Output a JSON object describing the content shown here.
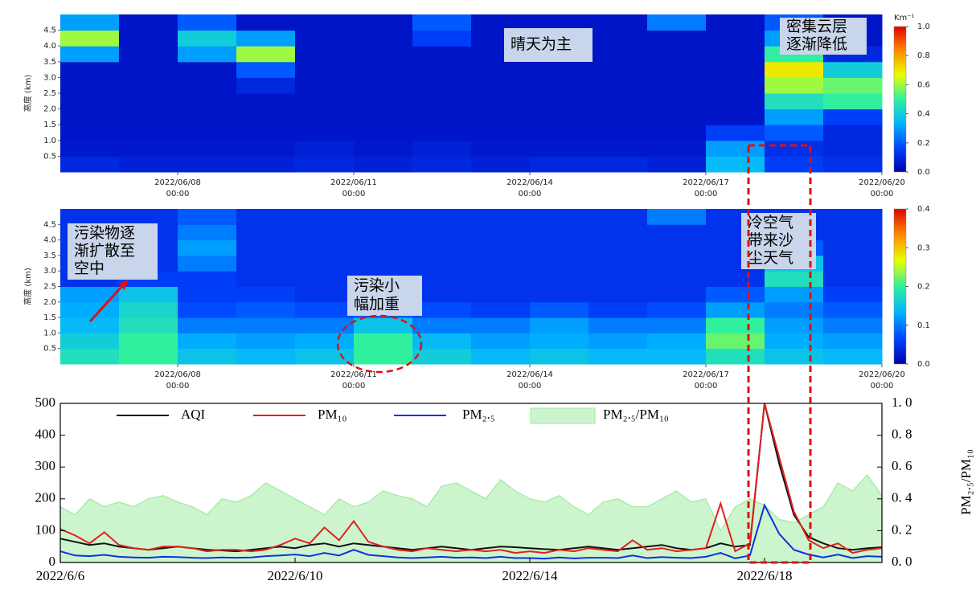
{
  "chart_data": [
    {
      "type": "heatmap",
      "ylabel": "高度 (km)",
      "colorbar_label": "Km⁻¹",
      "colormap": [
        "#0000b0",
        "#0044ff",
        "#00b4ff",
        "#30f0a0",
        "#e8ff00",
        "#ff8c00",
        "#e00000"
      ],
      "xlim": [
        0,
        14
      ],
      "ylim": [
        0,
        5
      ],
      "clim": [
        0,
        1
      ],
      "xticks": [
        {
          "value": 2,
          "label": [
            "2022/06/08",
            "00:00"
          ]
        },
        {
          "value": 5,
          "label": [
            "2022/06/11",
            "00:00"
          ]
        },
        {
          "value": 8,
          "label": [
            "2022/06/14",
            "00:00"
          ]
        },
        {
          "value": 11,
          "label": [
            "2022/06/17",
            "00:00"
          ]
        },
        {
          "value": 14,
          "label": [
            "2022/06/20",
            "00:00"
          ]
        }
      ],
      "yticks": [
        0.5,
        {
          "value": 1,
          "label": "1.0"
        },
        1.5,
        {
          "value": 2,
          "label": "2.0"
        },
        2.5,
        {
          "value": 3,
          "label": "3.0"
        },
        3.5,
        {
          "value": 4,
          "label": "4.0"
        },
        4.5
      ],
      "cticks": [
        {
          "value": 0,
          "label": "0.0"
        },
        0.2,
        0.4,
        0.6,
        0.8,
        {
          "value": 1,
          "label": "1.0"
        }
      ],
      "x": [
        0.5,
        1.5,
        2.5,
        3.5,
        4.5,
        5.5,
        6.5,
        7.5,
        8.5,
        9.5,
        10.5,
        11.5,
        12.5,
        13.5
      ],
      "y": [
        0.25,
        0.75,
        1.25,
        1.75,
        2.25,
        2.75,
        3.25,
        3.75,
        4.25,
        4.75
      ],
      "z": [
        [
          0.1,
          0.08,
          0.08,
          0.08,
          0.1,
          0.08,
          0.1,
          0.08,
          0.1,
          0.1,
          0.08,
          0.35,
          0.15,
          0.12
        ],
        [
          0.06,
          0.06,
          0.06,
          0.06,
          0.08,
          0.06,
          0.08,
          0.06,
          0.06,
          0.06,
          0.06,
          0.3,
          0.12,
          0.1
        ],
        [
          0.05,
          0.05,
          0.05,
          0.05,
          0.05,
          0.05,
          0.05,
          0.05,
          0.05,
          0.05,
          0.05,
          0.15,
          0.2,
          0.1
        ],
        [
          0.05,
          0.05,
          0.05,
          0.05,
          0.05,
          0.05,
          0.05,
          0.05,
          0.05,
          0.05,
          0.05,
          0.05,
          0.3,
          0.15
        ],
        [
          0.05,
          0.05,
          0.05,
          0.05,
          0.05,
          0.05,
          0.05,
          0.05,
          0.05,
          0.05,
          0.05,
          0.05,
          0.45,
          0.5
        ],
        [
          0.05,
          0.05,
          0.05,
          0.1,
          0.05,
          0.05,
          0.05,
          0.05,
          0.05,
          0.05,
          0.05,
          0.05,
          0.6,
          0.55
        ],
        [
          0.05,
          0.05,
          0.05,
          0.2,
          0.05,
          0.05,
          0.05,
          0.05,
          0.05,
          0.05,
          0.05,
          0.05,
          0.7,
          0.4
        ],
        [
          0.3,
          0.05,
          0.3,
          0.6,
          0.05,
          0.05,
          0.05,
          0.05,
          0.05,
          0.05,
          0.05,
          0.05,
          0.5,
          0.1
        ],
        [
          0.6,
          0.05,
          0.4,
          0.3,
          0.05,
          0.05,
          0.15,
          0.05,
          0.05,
          0.05,
          0.05,
          0.05,
          0.3,
          0.05
        ],
        [
          0.3,
          0.05,
          0.2,
          0.05,
          0.05,
          0.05,
          0.2,
          0.05,
          0.05,
          0.05,
          0.25,
          0.05,
          0.2,
          0.05
        ]
      ],
      "annotations": [
        {
          "lines": [
            "晴天为主"
          ]
        },
        {
          "lines": [
            "密集云层",
            "逐渐降低"
          ]
        }
      ]
    },
    {
      "type": "heatmap",
      "ylabel": "高度 (km)",
      "colormap": [
        "#0000b0",
        "#0044ff",
        "#00b4ff",
        "#30f0a0",
        "#e8ff00",
        "#ff8c00",
        "#e00000"
      ],
      "xlim": [
        0,
        14
      ],
      "ylim": [
        0,
        5
      ],
      "clim": [
        0,
        0.4
      ],
      "xticks": [
        {
          "value": 2,
          "label": [
            "2022/06/08",
            "00:00"
          ]
        },
        {
          "value": 5,
          "label": [
            "2022/06/11",
            "00:00"
          ]
        },
        {
          "value": 8,
          "label": [
            "2022/06/14",
            "00:00"
          ]
        },
        {
          "value": 11,
          "label": [
            "2022/06/17",
            "00:00"
          ]
        },
        {
          "value": 14,
          "label": [
            "2022/06/20",
            "00:00"
          ]
        }
      ],
      "yticks": [
        0.5,
        {
          "value": 1,
          "label": "1.0"
        },
        1.5,
        {
          "value": 2,
          "label": "2.0"
        },
        2.5,
        {
          "value": 3,
          "label": "3.0"
        },
        3.5,
        {
          "value": 4,
          "label": "4.0"
        },
        4.5
      ],
      "cticks": [
        {
          "value": 0,
          "label": "0.0"
        },
        0.1,
        0.2,
        0.3,
        0.4
      ],
      "x": [
        0.5,
        1.5,
        2.5,
        3.5,
        4.5,
        5.5,
        6.5,
        7.5,
        8.5,
        9.5,
        10.5,
        11.5,
        12.5,
        13.5
      ],
      "y": [
        0.25,
        0.75,
        1.25,
        1.75,
        2.25,
        2.75,
        3.25,
        3.75,
        4.25,
        4.75
      ],
      "z": [
        [
          0.18,
          0.2,
          0.15,
          0.14,
          0.15,
          0.2,
          0.16,
          0.14,
          0.15,
          0.14,
          0.14,
          0.18,
          0.15,
          0.14
        ],
        [
          0.16,
          0.2,
          0.13,
          0.12,
          0.13,
          0.2,
          0.14,
          0.12,
          0.13,
          0.12,
          0.13,
          0.22,
          0.13,
          0.12
        ],
        [
          0.14,
          0.18,
          0.1,
          0.1,
          0.1,
          0.15,
          0.1,
          0.1,
          0.12,
          0.1,
          0.1,
          0.2,
          0.12,
          0.1
        ],
        [
          0.13,
          0.17,
          0.07,
          0.08,
          0.07,
          0.08,
          0.07,
          0.06,
          0.08,
          0.06,
          0.07,
          0.12,
          0.1,
          0.08
        ],
        [
          0.12,
          0.15,
          0.06,
          0.06,
          0.05,
          0.05,
          0.05,
          0.05,
          0.05,
          0.05,
          0.05,
          0.08,
          0.12,
          0.06
        ],
        [
          0.05,
          0.06,
          0.06,
          0.05,
          0.05,
          0.05,
          0.05,
          0.05,
          0.05,
          0.05,
          0.05,
          0.05,
          0.18,
          0.05
        ],
        [
          0.05,
          0.05,
          0.1,
          0.05,
          0.05,
          0.05,
          0.05,
          0.05,
          0.05,
          0.05,
          0.05,
          0.05,
          0.15,
          0.05
        ],
        [
          0.05,
          0.05,
          0.12,
          0.05,
          0.05,
          0.05,
          0.05,
          0.05,
          0.05,
          0.05,
          0.05,
          0.05,
          0.08,
          0.05
        ],
        [
          0.05,
          0.05,
          0.1,
          0.05,
          0.05,
          0.05,
          0.05,
          0.05,
          0.05,
          0.05,
          0.05,
          0.05,
          0.05,
          0.05
        ],
        [
          0.05,
          0.05,
          0.08,
          0.05,
          0.05,
          0.05,
          0.05,
          0.05,
          0.05,
          0.05,
          0.1,
          0.05,
          0.05,
          0.05
        ]
      ],
      "annotations": [
        {
          "lines": [
            "污染物逐",
            "渐扩散至",
            "空中"
          ]
        },
        {
          "lines": [
            "污染小",
            "幅加重"
          ]
        },
        {
          "lines": [
            "冷空气",
            "带来沙",
            "尘天气"
          ]
        }
      ]
    },
    {
      "type": "line",
      "y2label": "PM₂.₅/PM₁₀",
      "xlim": [
        0,
        14
      ],
      "ylim": [
        0,
        500
      ],
      "y2lim": [
        0,
        1
      ],
      "xticks": [
        {
          "value": 0,
          "label": "2022/6/6"
        },
        {
          "value": 4,
          "label": "2022/6/10"
        },
        {
          "value": 8,
          "label": "2022/6/14"
        },
        {
          "value": 12,
          "label": "2022/6/18"
        }
      ],
      "yticks": [
        0,
        100,
        200,
        300,
        400,
        500
      ],
      "y2ticks": [
        {
          "value": 0,
          "label": "0. 0"
        },
        {
          "value": 0.2,
          "label": "0. 2"
        },
        {
          "value": 0.4,
          "label": "0. 4"
        },
        {
          "value": 0.6,
          "label": "0. 6"
        },
        {
          "value": 0.8,
          "label": "0. 8"
        },
        {
          "value": 1,
          "label": "1. 0"
        }
      ],
      "x": [
        0,
        0.25,
        0.5,
        0.75,
        1,
        1.25,
        1.5,
        1.75,
        2,
        2.25,
        2.5,
        2.75,
        3,
        3.25,
        3.5,
        3.75,
        4,
        4.25,
        4.5,
        4.75,
        5,
        5.25,
        5.5,
        5.75,
        6,
        6.25,
        6.5,
        6.75,
        7,
        7.25,
        7.5,
        7.75,
        8,
        8.25,
        8.5,
        8.75,
        9,
        9.25,
        9.5,
        9.75,
        10,
        10.25,
        10.5,
        10.75,
        11,
        11.25,
        11.5,
        11.75,
        12,
        12.25,
        12.5,
        12.75,
        13,
        13.25,
        13.5,
        13.75,
        14
      ],
      "series": [
        {
          "name": "PM₂.₅/PM₁₀",
          "color": "#9fe89f",
          "fill": "#cdf5cd",
          "axis": "y2",
          "area": true,
          "values": [
            0.35,
            0.3,
            0.4,
            0.35,
            0.38,
            0.35,
            0.4,
            0.42,
            0.38,
            0.35,
            0.3,
            0.4,
            0.38,
            0.42,
            0.5,
            0.45,
            0.4,
            0.35,
            0.3,
            0.4,
            0.35,
            0.38,
            0.45,
            0.42,
            0.4,
            0.35,
            0.48,
            0.5,
            0.45,
            0.4,
            0.52,
            0.45,
            0.4,
            0.38,
            0.42,
            0.35,
            0.3,
            0.38,
            0.4,
            0.35,
            0.35,
            0.4,
            0.45,
            0.38,
            0.4,
            0.2,
            0.35,
            0.4,
            0.36,
            0.27,
            0.25,
            0.3,
            0.35,
            0.5,
            0.45,
            0.55,
            0.42
          ]
        },
        {
          "name": "AQI",
          "color": "#111111",
          "values": [
            75,
            65,
            55,
            60,
            50,
            45,
            40,
            45,
            50,
            45,
            40,
            38,
            35,
            40,
            45,
            50,
            45,
            55,
            60,
            50,
            60,
            55,
            50,
            45,
            40,
            45,
            50,
            45,
            40,
            45,
            50,
            48,
            45,
            42,
            40,
            45,
            50,
            45,
            40,
            45,
            50,
            55,
            45,
            40,
            45,
            60,
            50,
            55,
            500,
            310,
            150,
            80,
            60,
            45,
            40,
            45,
            48
          ]
        },
        {
          "name": "PM₁₀",
          "color": "#e02020",
          "values": [
            105,
            85,
            60,
            95,
            55,
            45,
            40,
            50,
            50,
            45,
            35,
            40,
            40,
            35,
            40,
            55,
            75,
            60,
            110,
            70,
            130,
            65,
            50,
            40,
            35,
            45,
            40,
            35,
            40,
            35,
            40,
            30,
            35,
            30,
            40,
            35,
            45,
            40,
            35,
            70,
            40,
            45,
            35,
            40,
            45,
            185,
            35,
            60,
            500,
            330,
            160,
            70,
            45,
            60,
            30,
            40,
            45
          ]
        },
        {
          "name": "PM₂.₅",
          "color": "#1030e0",
          "values": [
            35,
            22,
            20,
            24,
            18,
            16,
            15,
            18,
            17,
            15,
            14,
            16,
            15,
            16,
            20,
            22,
            25,
            20,
            30,
            22,
            40,
            24,
            20,
            16,
            14,
            16,
            18,
            15,
            16,
            14,
            18,
            14,
            14,
            12,
            16,
            13,
            15,
            15,
            14,
            22,
            14,
            17,
            15,
            14,
            18,
            30,
            13,
            22,
            180,
            90,
            40,
            25,
            16,
            25,
            14,
            20,
            18
          ]
        }
      ]
    }
  ]
}
